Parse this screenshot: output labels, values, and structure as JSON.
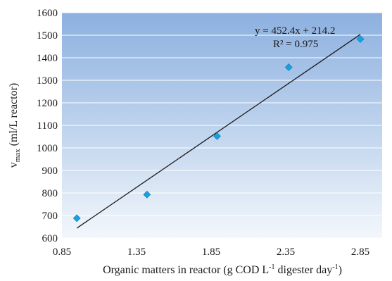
{
  "chart_data": {
    "type": "scatter",
    "x": [
      0.95,
      1.42,
      1.89,
      2.37,
      2.85
    ],
    "y": [
      688,
      793,
      1052,
      1358,
      1483
    ],
    "xlim": [
      0.85,
      2.85
    ],
    "ylim": [
      600,
      1600
    ],
    "xticks": [
      "0.85",
      "1.35",
      "1.85",
      "2.35",
      "2.85"
    ],
    "yticks": [
      "600",
      "700",
      "800",
      "900",
      "1000",
      "1100",
      "1200",
      "1300",
      "1400",
      "1500",
      "1600"
    ],
    "ylabel_main": "v",
    "ylabel_sub": "max",
    "ylabel_unit": " (ml/L reactor)",
    "xlabel_pre": "Organic matters in reactor (g COD L",
    "xlabel_sup1": "-1",
    "xlabel_mid": " digester day",
    "xlabel_sup2": "-1",
    "xlabel_post": ")",
    "trendline": {
      "slope": 452.4,
      "intercept": 214.2,
      "x_range": [
        0.95,
        2.85
      ],
      "equation_label": "y = 452.4x + 214.2",
      "r2_label": "R² = 0.975"
    },
    "marker_color": "#1aa0dc",
    "grid": true,
    "plot_background": "gradient-blue"
  }
}
